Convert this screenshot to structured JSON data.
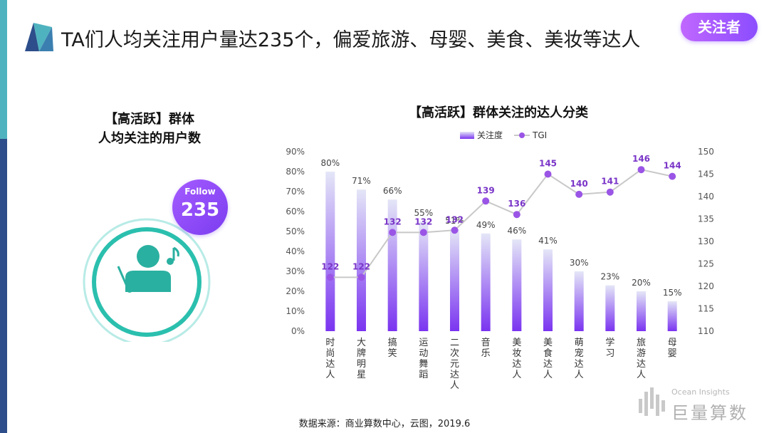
{
  "header": {
    "title": "TA们人均关注用户量达235个，偏爱旅游、母婴、美食、美妆等达人",
    "badge": "关注者"
  },
  "left_panel": {
    "title_line1": "【高活跃】群体",
    "title_line2": "人均关注的用户数",
    "follow_label": "Follow",
    "follow_value": "235",
    "icon": "person-with-music-note-icon"
  },
  "chart_data": {
    "type": "bar",
    "title": "【高活跃】群体关注的达人分类",
    "categories": [
      "时尚达人",
      "大牌明星",
      "搞笑",
      "运动舞蹈",
      "二次元达人",
      "音乐",
      "美妆达人",
      "美食达人",
      "萌宠达人",
      "学习",
      "旅游达人",
      "母婴"
    ],
    "series": [
      {
        "name": "关注度",
        "type": "bar",
        "axis": "left",
        "values": [
          80,
          71,
          66,
          55,
          51,
          49,
          46,
          41,
          30,
          23,
          20,
          15
        ],
        "labels": [
          "80%",
          "71%",
          "66%",
          "55%",
          "51%",
          "49%",
          "46%",
          "41%",
          "30%",
          "23%",
          "20%",
          "15%"
        ]
      },
      {
        "name": "TGI",
        "type": "line",
        "axis": "right",
        "values": [
          122,
          122,
          132,
          132,
          132,
          null,
          136,
          145,
          140,
          141,
          146,
          144
        ],
        "labels": [
          "122",
          "122",
          "132",
          "132",
          "132",
          "139",
          "136",
          "145",
          "140",
          "141",
          "146",
          "144"
        ],
        "line_values": [
          122,
          122,
          132,
          132,
          132.5,
          139,
          136,
          145,
          140.5,
          141,
          146,
          144.5
        ]
      }
    ],
    "y_left": {
      "min": 0,
      "max": 90,
      "step": 10,
      "ticks": [
        "0%",
        "10%",
        "20%",
        "30%",
        "40%",
        "50%",
        "60%",
        "70%",
        "80%",
        "90%"
      ]
    },
    "y_right": {
      "min": 110,
      "max": 150,
      "step": 5,
      "ticks": [
        "110",
        "115",
        "120",
        "125",
        "130",
        "135",
        "140",
        "145",
        "150"
      ]
    },
    "legend_position": "top-center",
    "grid": false,
    "colors": {
      "bar_top": "#e4e6f7",
      "bar_bottom": "#7a34f0",
      "line": "#c8c8c8",
      "marker": "#9a55e6",
      "tgi_label": "#7a35c8"
    }
  },
  "footer": {
    "source": "数据来源：商业算数中心，云图，2019.6",
    "brand_en": "Ocean Insights",
    "brand_cn": "巨量算数"
  }
}
